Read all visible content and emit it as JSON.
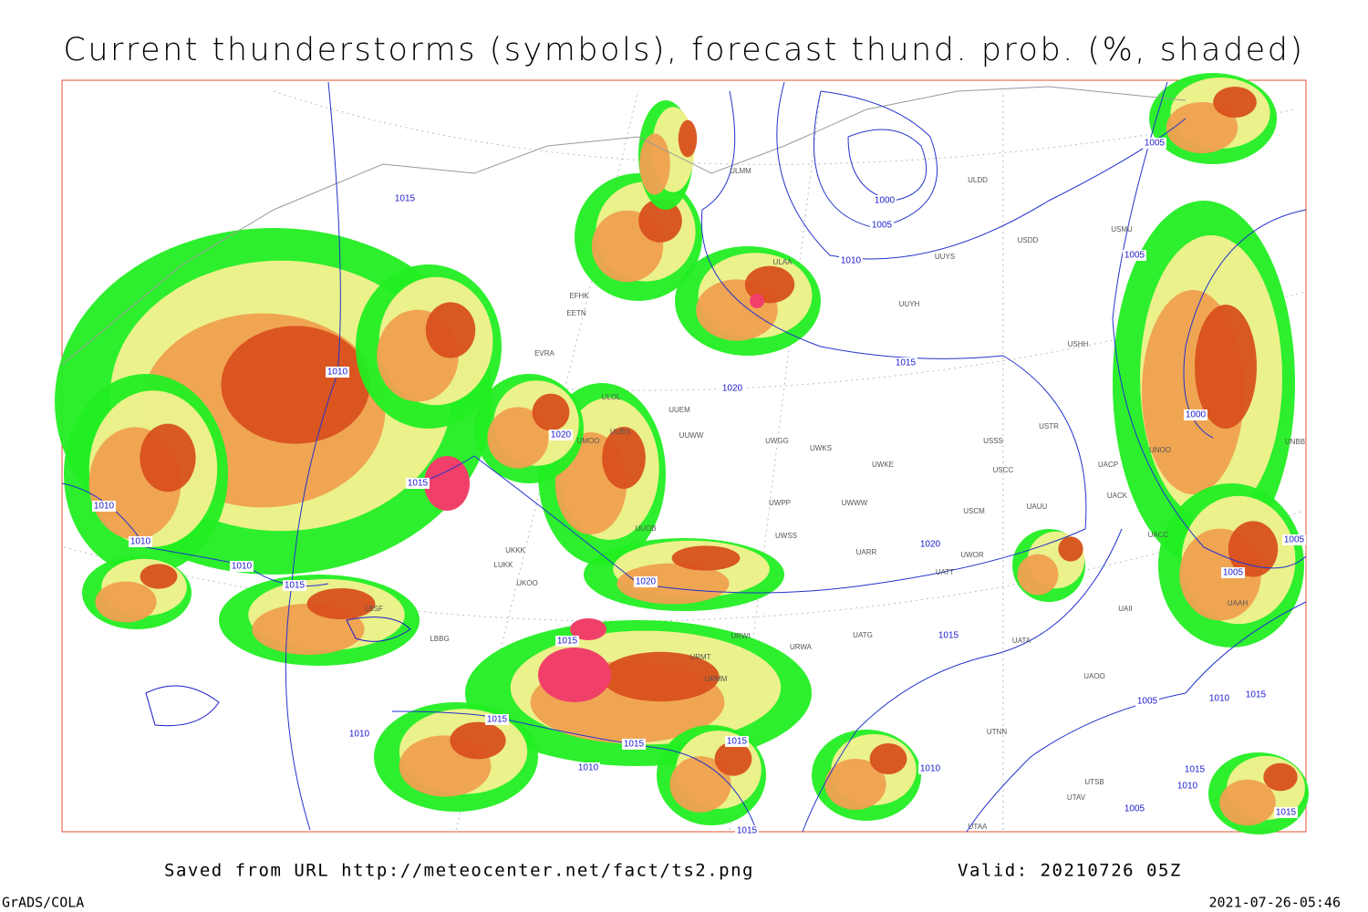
{
  "header": {
    "title": "Current thunderstorms (symbols), forecast thund. prob. (%, shaded)"
  },
  "map": {
    "isobar_labels": [
      1015,
      1000,
      1005,
      1010,
      1005,
      1005,
      1015,
      1020,
      1010,
      1020,
      1015,
      1010,
      1010,
      1010,
      1015,
      1020,
      1020,
      1000,
      1005,
      1005,
      1015,
      1015,
      1010,
      1015,
      1010,
      1015,
      1015,
      1010,
      1005,
      1010,
      1015,
      1015,
      1010,
      1005,
      1015,
      1015
    ],
    "stations": [
      "ULMM",
      "ULDD",
      "USDD",
      "ULAA",
      "UUYS",
      "UUYH",
      "USHH",
      "USMU",
      "EFHK",
      "EETN",
      "EVRA",
      "ULOL",
      "UUEM",
      "UUWW",
      "UUBS",
      "UMOO",
      "UWGG",
      "UWKS",
      "USSS",
      "USTR",
      "UWKE",
      "USCC",
      "UACP",
      "UACK",
      "UNOO",
      "UWPP",
      "UWWW",
      "USCM",
      "UAUU",
      "UUOB",
      "UWSS",
      "UARR",
      "UWOR",
      "UATT",
      "UACC",
      "UKKK",
      "LUKK",
      "UKOO",
      "LBSF",
      "LBBG",
      "UATG",
      "UATA",
      "UAII",
      "UAOO",
      "URWI",
      "URWA",
      "URMT",
      "URMM",
      "UTNN",
      "UTSB",
      "UTAV",
      "UTAA",
      "UAAH",
      "UNBB"
    ]
  },
  "footer": {
    "saved": "Saved from URL http://meteocenter.net/fact/ts2.png",
    "valid": "Valid: 20210726 05Z",
    "software": "GrADS/COLA",
    "timestamp": "2021-07-26-05:46"
  }
}
